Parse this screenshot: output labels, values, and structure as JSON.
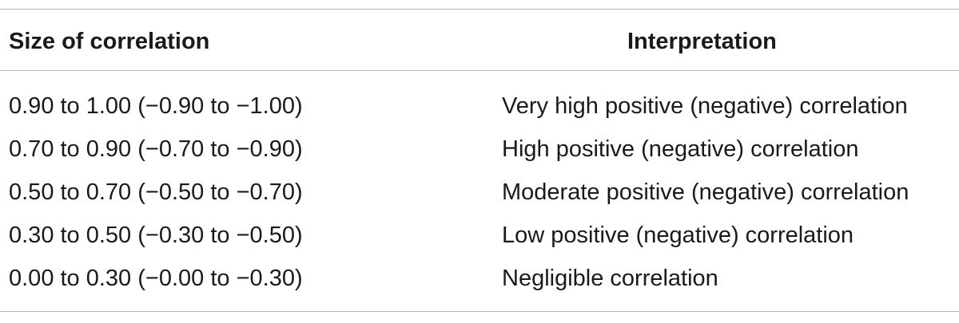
{
  "table": {
    "headers": {
      "size": "Size of correlation",
      "interpretation": "Interpretation"
    },
    "rows": [
      {
        "size": "0.90 to 1.00 (−0.90 to −1.00)",
        "interpretation": "Very high positive (negative) correlation"
      },
      {
        "size": "0.70 to 0.90 (−0.70 to −0.90)",
        "interpretation": "High positive (negative) correlation"
      },
      {
        "size": "0.50 to 0.70 (−0.50 to −0.70)",
        "interpretation": "Moderate positive (negative) correlation"
      },
      {
        "size": "0.30 to 0.50 (−0.30 to −0.50)",
        "interpretation": "Low positive (negative) correlation"
      },
      {
        "size": "0.00 to 0.30 (−0.00 to −0.30)",
        "interpretation": "Negligible correlation"
      }
    ]
  }
}
